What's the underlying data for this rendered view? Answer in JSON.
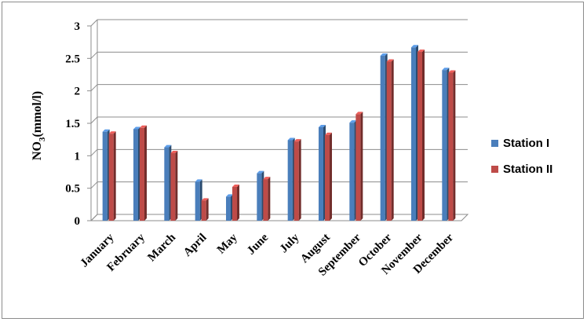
{
  "chart_data": {
    "type": "bar",
    "title": "",
    "xlabel": "",
    "ylabel": {
      "main": "NO",
      "sub": "3",
      "rest": "(mmol/l)"
    },
    "ylim": [
      0,
      3
    ],
    "yticks": [
      "0",
      "0.5",
      "1",
      "1.5",
      "2",
      "2.5",
      "3"
    ],
    "grid": true,
    "legend_position": "right",
    "categories": [
      "January",
      "February",
      "March",
      "April",
      "May",
      "June",
      "July",
      "August",
      "September",
      "October",
      "November",
      "December"
    ],
    "series": [
      {
        "name": "Station I",
        "color": "#4a7ebb",
        "values": [
          1.37,
          1.41,
          1.13,
          0.6,
          0.37,
          0.73,
          1.24,
          1.44,
          1.51,
          2.54,
          2.67,
          2.32
        ]
      },
      {
        "name": "Station II",
        "color": "#be4b48",
        "values": [
          1.34,
          1.43,
          1.04,
          0.31,
          0.52,
          0.64,
          1.22,
          1.32,
          1.64,
          2.45,
          2.6,
          2.28
        ]
      }
    ]
  }
}
